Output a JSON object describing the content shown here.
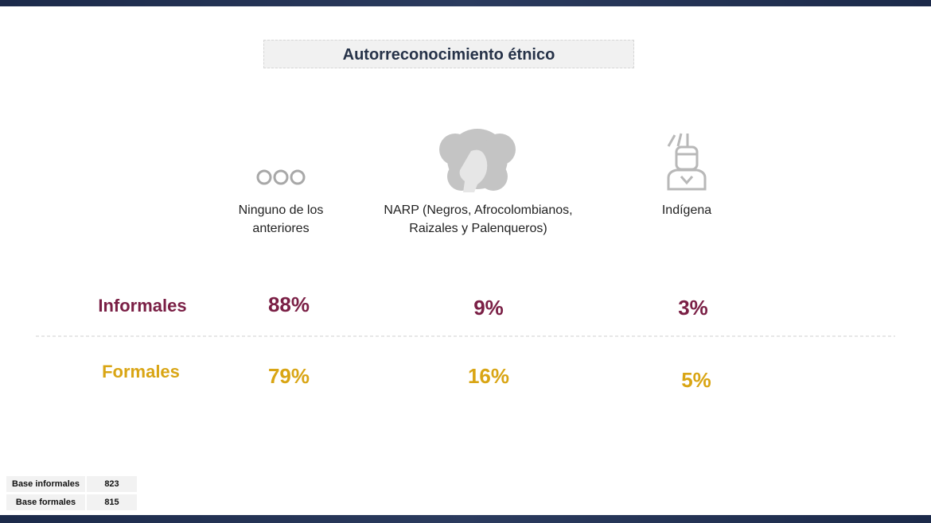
{
  "header": {
    "title": "Autorreconocimiento étnico"
  },
  "columns": [
    {
      "label": "Ninguno de los anteriores"
    },
    {
      "label": "NARP (Negros, Afrocolombianos, Raizales y Palenqueros)"
    },
    {
      "label": "Indígena"
    }
  ],
  "rows": [
    {
      "label": "Informales",
      "values": [
        "88%",
        "9%",
        "3%"
      ]
    },
    {
      "label": "Formales",
      "values": [
        "79%",
        "16%",
        "5%"
      ]
    }
  ],
  "base": [
    {
      "label": "Base informales",
      "value": 823
    },
    {
      "label": "Base formales",
      "value": 815
    }
  ]
}
